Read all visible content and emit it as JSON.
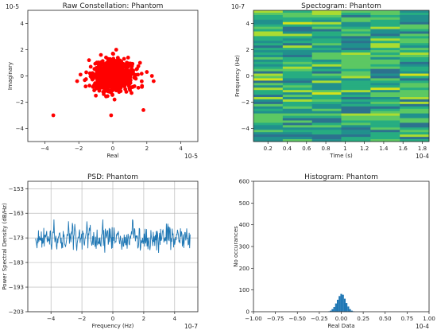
{
  "chart_data": [
    {
      "type": "scatter",
      "title": "Raw Constellation: Phantom",
      "xlabel": "Real",
      "ylabel": "Imaginary",
      "x_exponent_label": "10-5",
      "y_exponent_label": "10-5",
      "xlim": [
        -5,
        5
      ],
      "ylim": [
        -5,
        5
      ],
      "xticks": [
        -4,
        -2,
        0,
        2,
        4
      ],
      "yticks": [
        -4,
        -2,
        0,
        2,
        4
      ],
      "grid": false,
      "color": "#ff0000",
      "points": [
        [
          0.0,
          0.0
        ],
        [
          0.3,
          0.2
        ],
        [
          -0.4,
          0.5
        ],
        [
          0.8,
          -0.6
        ],
        [
          -0.9,
          -0.3
        ],
        [
          1.2,
          0.4
        ],
        [
          -1.3,
          0.7
        ],
        [
          0.5,
          1.1
        ],
        [
          -0.2,
          -1.2
        ],
        [
          1.5,
          -0.9
        ],
        [
          -1.6,
          -0.8
        ],
        [
          0.9,
          1.4
        ],
        [
          -0.7,
          1.6
        ],
        [
          2.0,
          0.3
        ],
        [
          -1.9,
          0.1
        ],
        [
          2.3,
          0.0
        ],
        [
          -3.5,
          -3.0
        ],
        [
          -0.1,
          -3.0
        ],
        [
          1.8,
          -2.6
        ],
        [
          0.2,
          2.0
        ],
        [
          -1.0,
          -1.5
        ],
        [
          1.1,
          -1.3
        ],
        [
          0.6,
          0.7
        ],
        [
          -0.5,
          -0.6
        ],
        [
          1.6,
          1.0
        ],
        [
          -1.4,
          1.2
        ],
        [
          0.0,
          1.7
        ],
        [
          0.1,
          -1.8
        ],
        [
          2.4,
          -0.4
        ],
        [
          -2.1,
          -0.4
        ]
      ]
    },
    {
      "type": "heatmap",
      "title": "Spectogram: Phantom",
      "xlabel": "Time (s)",
      "ylabel": "Frequency (Hz)",
      "x_exponent_label": "10-4",
      "y_exponent_label": "10-7",
      "xlim": [
        0.05,
        1.87
      ],
      "ylim": [
        -5,
        5
      ],
      "xticks": [
        0.2,
        0.4,
        0.6,
        0.8,
        1.0,
        1.2,
        1.4,
        1.6,
        1.8
      ],
      "yticks": [
        -4,
        -2,
        0,
        2,
        4
      ],
      "colormap": "viridis",
      "bands": 56
    },
    {
      "type": "line",
      "title": "PSD: Phantom",
      "xlabel": "Frequency (Hz)",
      "ylabel": "Power Spectral Density (dB/Hz)",
      "x_exponent_label": "10-7",
      "xlim": [
        -5.5,
        5.5
      ],
      "ylim": [
        -203,
        -150
      ],
      "xticks": [
        -4,
        -2,
        0,
        2,
        4
      ],
      "yticks": [
        -153,
        -163,
        -173,
        -183,
        -193,
        -203
      ],
      "grid": true,
      "color": "#1f77b4",
      "mean_level": -173,
      "spread": 5,
      "x_range": [
        -5,
        5
      ],
      "n_points": 320
    },
    {
      "type": "bar",
      "title": "Histogram: Phantom",
      "xlabel": "Real Data",
      "ylabel": "No occurances",
      "x_exponent_label": "10-4",
      "xlim": [
        -1.0,
        1.0
      ],
      "ylim": [
        0,
        600
      ],
      "xticks": [
        -1.0,
        -0.75,
        -0.5,
        -0.25,
        0.0,
        0.25,
        0.5,
        0.75,
        1.0
      ],
      "xtick_labels": [
        "−1.00",
        "−0.75",
        "−0.50",
        "−0.25",
        "0.00",
        "0.25",
        "0.50",
        "0.75",
        "1.00"
      ],
      "yticks": [
        0,
        100,
        200,
        300,
        400,
        500,
        600
      ],
      "color": "#1f77b4",
      "bin_centers": [
        -0.14,
        -0.12,
        -0.1,
        -0.08,
        -0.06,
        -0.04,
        -0.02,
        0.0,
        0.02,
        0.04,
        0.06,
        0.08,
        0.1,
        0.12,
        0.14
      ],
      "counts": [
        2,
        5,
        12,
        22,
        38,
        55,
        72,
        82,
        78,
        60,
        40,
        24,
        12,
        5,
        2
      ]
    }
  ]
}
